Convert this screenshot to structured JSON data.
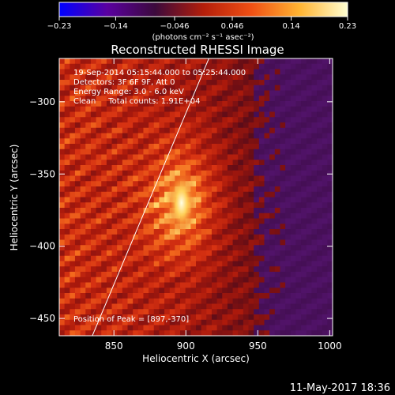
{
  "chart_data": {
    "type": "heatmap",
    "title": "Reconstructed RHESSI Image",
    "xlabel": "Heliocentric X (arcsec)",
    "ylabel": "Heliocentric Y (arcsec)",
    "xlim": [
      812,
      1002
    ],
    "ylim": [
      -462,
      -270
    ],
    "x_ticks": [
      850,
      900,
      950,
      1000
    ],
    "x_tick_labels": [
      "850",
      "900",
      "950",
      "1000"
    ],
    "y_ticks": [
      -300,
      -350,
      -400,
      -450
    ],
    "y_tick_labels": [
      "−300",
      "−350",
      "−400",
      "−450"
    ],
    "colorbar": {
      "range": [
        -0.23,
        0.23
      ],
      "ticks": [
        -0.23,
        -0.14,
        -0.046,
        0.046,
        0.14,
        0.23
      ],
      "tick_labels": [
        "−0.23",
        "−0.14",
        "−0.046",
        "0.046",
        "0.14",
        "0.23"
      ],
      "unit_label": "(photons cm⁻² s⁻¹ asec⁻²)",
      "colors": [
        "#0000ff",
        "#5a00a0",
        "#3c0a3c",
        "#b41e0a",
        "#f05014",
        "#ffb432",
        "#ffffd2"
      ]
    },
    "info": [
      "19-Sep-2014 05:15:44.000 to 05:25:44.000",
      "Detectors: 3F 6F 9F, Att 0",
      "Energy Range: 3.0 - 6.0 keV",
      "Clean     Total counts: 1.91E+04"
    ],
    "peak_label": "Position of Peak = [897,-370]",
    "peak": {
      "x": 897,
      "y": -370
    },
    "limb_line": {
      "x": [
        835,
        916
      ],
      "y": [
        -462,
        -270
      ]
    },
    "grid": false
  },
  "footer_date": "11-May-2017 18:36"
}
